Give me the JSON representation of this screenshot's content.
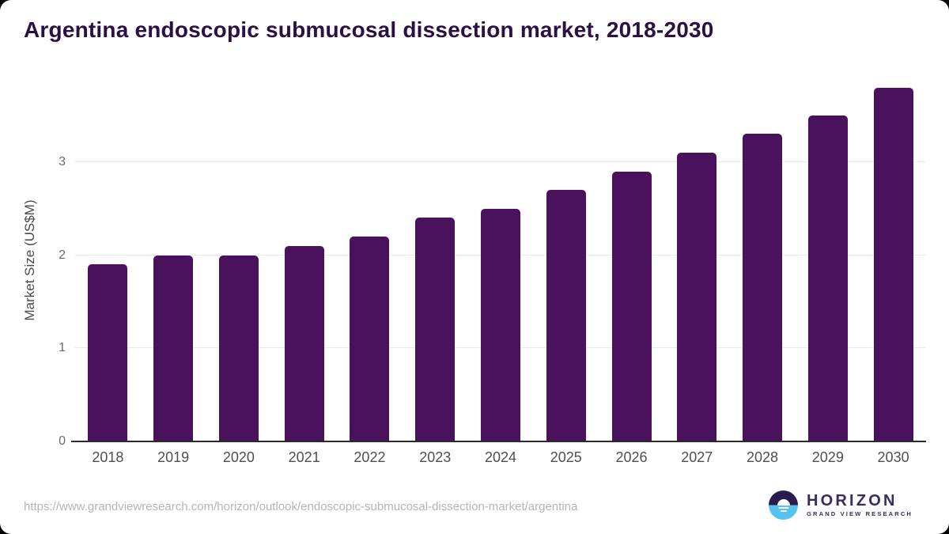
{
  "title": "Argentina endoscopic submucosal dissection market, 2018-2030",
  "chart_data": {
    "type": "bar",
    "categories": [
      "2018",
      "2019",
      "2020",
      "2021",
      "2022",
      "2023",
      "2024",
      "2025",
      "2026",
      "2027",
      "2028",
      "2029",
      "2030"
    ],
    "values": [
      1.9,
      2.0,
      2.0,
      2.1,
      2.2,
      2.4,
      2.5,
      2.7,
      2.9,
      3.1,
      3.3,
      3.5,
      3.8
    ],
    "title": "Argentina endoscopic submucosal dissection market, 2018-2030",
    "xlabel": "",
    "ylabel": "Market Size (US$M)",
    "ylim": [
      0,
      3.89
    ],
    "yticks": [
      0,
      1,
      2,
      3
    ],
    "grid": true,
    "legend": "none",
    "bar_color": "#4a115c"
  },
  "colors": {
    "title_text": "#2b1044",
    "axis_text": "#4f4f4f",
    "tick_text": "#6b6b6b",
    "gridline": "#e9e9e9",
    "axis_line": "#2b2b2b",
    "bar": "#4a115c",
    "url_text": "#b5b5b5",
    "logo_purple": "#3a2a5e",
    "logo_blue": "#56c3ee"
  },
  "footer": {
    "source_url": "https://www.grandviewresearch.com/horizon/outlook/endoscopic-submucosal-dissection-market/argentina",
    "logo": {
      "name": "HORIZON",
      "subtitle": "GRAND VIEW RESEARCH"
    }
  }
}
